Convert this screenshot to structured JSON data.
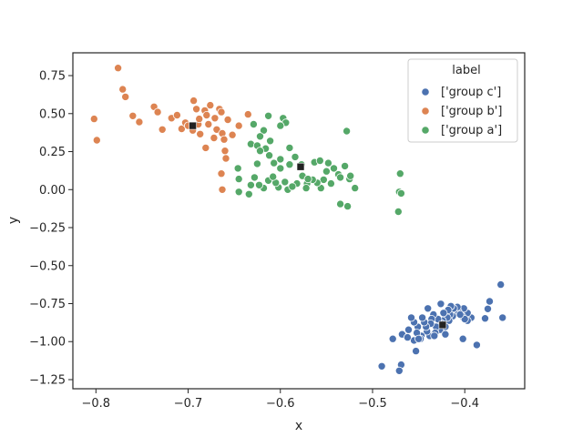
{
  "chart_data": {
    "type": "scatter",
    "xlabel": "x",
    "ylabel": "y",
    "xlim": [
      -0.825,
      -0.335
    ],
    "ylim": [
      -1.31,
      0.9
    ],
    "xticks": [
      -0.8,
      -0.7,
      -0.6,
      -0.5,
      -0.4
    ],
    "xtick_labels": [
      "−0.8",
      "−0.7",
      "−0.6",
      "−0.5",
      "−0.4"
    ],
    "yticks": [
      -1.25,
      -1.0,
      -0.75,
      -0.5,
      -0.25,
      0.0,
      0.25,
      0.5,
      0.75
    ],
    "ytick_labels": [
      "−1.25",
      "−1.00",
      "−0.75",
      "−0.50",
      "−0.25",
      "0.00",
      "0.25",
      "0.50",
      "0.75"
    ],
    "grid": false,
    "legend": {
      "title": "label",
      "placement": "top-right",
      "entries": [
        "['group c']",
        "['group b']",
        "['group a']"
      ]
    },
    "colors": {
      "group_c": "#4c72b0",
      "group_b": "#dd8452",
      "group_a": "#55a868",
      "centroid": "#222222"
    },
    "series": [
      {
        "name": "['group c']",
        "color": "#4c72b0",
        "points": [
          [
            -0.361,
            -0.625
          ],
          [
            -0.359,
            -0.842
          ],
          [
            -0.373,
            -0.735
          ],
          [
            -0.375,
            -0.785
          ],
          [
            -0.378,
            -0.847
          ],
          [
            -0.387,
            -1.022
          ],
          [
            -0.393,
            -0.842
          ],
          [
            -0.397,
            -0.812
          ],
          [
            -0.397,
            -0.862
          ],
          [
            -0.401,
            -0.782
          ],
          [
            -0.403,
            -0.832
          ],
          [
            -0.407,
            -0.802
          ],
          [
            -0.408,
            -0.772
          ],
          [
            -0.412,
            -0.782
          ],
          [
            -0.413,
            -0.832
          ],
          [
            -0.415,
            -0.767
          ],
          [
            -0.416,
            -0.822
          ],
          [
            -0.417,
            -0.862
          ],
          [
            -0.418,
            -0.792
          ],
          [
            -0.419,
            -0.842
          ],
          [
            -0.402,
            -0.982
          ],
          [
            -0.421,
            -0.902
          ],
          [
            -0.423,
            -0.812
          ],
          [
            -0.424,
            -0.862
          ],
          [
            -0.425,
            -0.882
          ],
          [
            -0.426,
            -0.752
          ],
          [
            -0.427,
            -0.922
          ],
          [
            -0.428,
            -0.882
          ],
          [
            -0.429,
            -0.852
          ],
          [
            -0.431,
            -0.902
          ],
          [
            -0.432,
            -0.942
          ],
          [
            -0.434,
            -0.822
          ],
          [
            -0.436,
            -0.852
          ],
          [
            -0.437,
            -0.882
          ],
          [
            -0.438,
            -0.962
          ],
          [
            -0.44,
            -0.782
          ],
          [
            -0.441,
            -0.932
          ],
          [
            -0.442,
            -0.902
          ],
          [
            -0.444,
            -0.872
          ],
          [
            -0.446,
            -0.842
          ],
          [
            -0.447,
            -0.962
          ],
          [
            -0.448,
            -0.982
          ],
          [
            -0.451,
            -0.902
          ],
          [
            -0.452,
            -0.942
          ],
          [
            -0.453,
            -1.062
          ],
          [
            -0.455,
            -0.992
          ],
          [
            -0.455,
            -0.872
          ],
          [
            -0.458,
            -0.842
          ],
          [
            -0.468,
            -0.952
          ],
          [
            -0.469,
            -1.152
          ],
          [
            -0.471,
            -1.192
          ],
          [
            -0.478,
            -0.982
          ],
          [
            -0.49,
            -1.162
          ],
          [
            -0.461,
            -0.922
          ],
          [
            -0.45,
            -0.982
          ],
          [
            -0.462,
            -0.972
          ],
          [
            -0.433,
            -0.962
          ],
          [
            -0.4,
            -0.852
          ],
          [
            -0.405,
            -0.822
          ],
          [
            -0.421,
            -0.952
          ]
        ]
      },
      {
        "name": "['group b']",
        "color": "#dd8452",
        "points": [
          [
            -0.776,
            0.8
          ],
          [
            -0.771,
            0.66
          ],
          [
            -0.768,
            0.61
          ],
          [
            -0.802,
            0.465
          ],
          [
            -0.799,
            0.325
          ],
          [
            -0.76,
            0.485
          ],
          [
            -0.753,
            0.445
          ],
          [
            -0.737,
            0.545
          ],
          [
            -0.733,
            0.51
          ],
          [
            -0.728,
            0.395
          ],
          [
            -0.718,
            0.47
          ],
          [
            -0.712,
            0.49
          ],
          [
            -0.707,
            0.4
          ],
          [
            -0.703,
            0.44
          ],
          [
            -0.698,
            0.415
          ],
          [
            -0.694,
            0.585
          ],
          [
            -0.691,
            0.53
          ],
          [
            -0.689,
            0.43
          ],
          [
            -0.687,
            0.365
          ],
          [
            -0.688,
            0.465
          ],
          [
            -0.682,
            0.52
          ],
          [
            -0.681,
            0.275
          ],
          [
            -0.678,
            0.43
          ],
          [
            -0.676,
            0.555
          ],
          [
            -0.672,
            0.34
          ],
          [
            -0.671,
            0.47
          ],
          [
            -0.669,
            0.395
          ],
          [
            -0.666,
            0.53
          ],
          [
            -0.664,
            0.51
          ],
          [
            -0.663,
            0.37
          ],
          [
            -0.664,
            0.105
          ],
          [
            -0.663,
            0.0
          ],
          [
            -0.661,
            0.33
          ],
          [
            -0.66,
            0.255
          ],
          [
            -0.659,
            0.205
          ],
          [
            -0.657,
            0.46
          ],
          [
            -0.652,
            0.36
          ],
          [
            -0.645,
            0.42
          ],
          [
            -0.635,
            0.495
          ],
          [
            -0.7,
            0.42
          ],
          [
            -0.695,
            0.39
          ],
          [
            -0.68,
            0.49
          ]
        ]
      },
      {
        "name": "['group a']",
        "color": "#55a868",
        "points": [
          [
            -0.613,
            0.485
          ],
          [
            -0.597,
            0.47
          ],
          [
            -0.594,
            0.44
          ],
          [
            -0.629,
            0.43
          ],
          [
            -0.6,
            0.42
          ],
          [
            -0.618,
            0.39
          ],
          [
            -0.622,
            0.35
          ],
          [
            -0.611,
            0.32
          ],
          [
            -0.632,
            0.3
          ],
          [
            -0.625,
            0.29
          ],
          [
            -0.616,
            0.27
          ],
          [
            -0.622,
            0.255
          ],
          [
            -0.612,
            0.225
          ],
          [
            -0.59,
            0.275
          ],
          [
            -0.584,
            0.215
          ],
          [
            -0.528,
            0.385
          ],
          [
            -0.607,
            0.175
          ],
          [
            -0.6,
            0.14
          ],
          [
            -0.59,
            0.165
          ],
          [
            -0.577,
            0.165
          ],
          [
            -0.563,
            0.18
          ],
          [
            -0.557,
            0.19
          ],
          [
            -0.548,
            0.175
          ],
          [
            -0.542,
            0.14
          ],
          [
            -0.53,
            0.155
          ],
          [
            -0.525,
            0.07
          ],
          [
            -0.537,
            0.1
          ],
          [
            -0.524,
            0.09
          ],
          [
            -0.519,
            0.01
          ],
          [
            -0.535,
            -0.095
          ],
          [
            -0.527,
            -0.11
          ],
          [
            -0.545,
            0.04
          ],
          [
            -0.553,
            0.065
          ],
          [
            -0.556,
            0.01
          ],
          [
            -0.56,
            0.045
          ],
          [
            -0.565,
            0.065
          ],
          [
            -0.571,
            0.04
          ],
          [
            -0.572,
            0.01
          ],
          [
            -0.576,
            0.09
          ],
          [
            -0.582,
            0.04
          ],
          [
            -0.592,
            0.0
          ],
          [
            -0.602,
            0.015
          ],
          [
            -0.605,
            0.045
          ],
          [
            -0.613,
            0.06
          ],
          [
            -0.618,
            0.01
          ],
          [
            -0.623,
            0.03
          ],
          [
            -0.628,
            0.08
          ],
          [
            -0.632,
            0.03
          ],
          [
            -0.634,
            -0.03
          ],
          [
            -0.646,
            0.14
          ],
          [
            -0.645,
            0.07
          ],
          [
            -0.645,
            -0.015
          ],
          [
            -0.47,
            0.105
          ],
          [
            -0.471,
            -0.015
          ],
          [
            -0.469,
            -0.025
          ],
          [
            -0.472,
            -0.145
          ],
          [
            -0.608,
            0.085
          ],
          [
            -0.595,
            0.05
          ],
          [
            -0.587,
            0.02
          ],
          [
            -0.57,
            0.07
          ],
          [
            -0.55,
            0.12
          ],
          [
            -0.535,
            0.08
          ],
          [
            -0.6,
            0.2
          ],
          [
            -0.625,
            0.17
          ]
        ]
      }
    ],
    "centroids": [
      [
        -0.424,
        -0.89
      ],
      [
        -0.695,
        0.42
      ],
      [
        -0.578,
        0.15
      ]
    ]
  }
}
